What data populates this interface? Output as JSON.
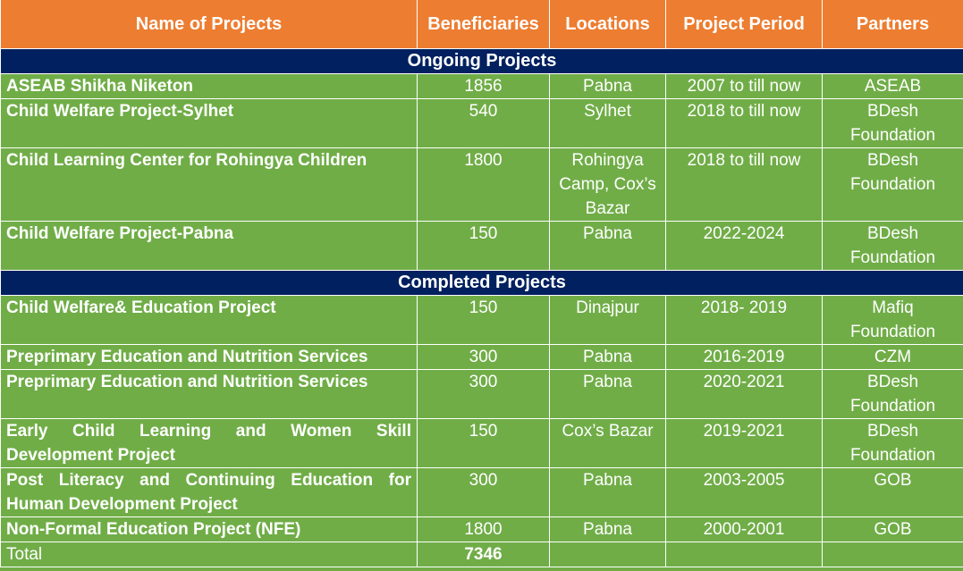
{
  "header": {
    "name": "Name of Projects",
    "beneficiaries": "Beneficiaries",
    "locations": "Locations",
    "period": "Project Period",
    "partners": "Partners"
  },
  "ongoing_title": "Ongoing Projects",
  "ongoing": [
    {
      "name": "ASEAB Shikha Niketon",
      "beneficiaries": "1856",
      "location": "Pabna",
      "period": "2007 to till now",
      "partner": "ASEAB"
    },
    {
      "name": "Child Welfare Project-Sylhet",
      "beneficiaries": "540",
      "location": "Sylhet",
      "period": "2018 to till now",
      "partner": "BDesh Foundation"
    },
    {
      "name": "Child Learning Center for Rohingya Children",
      "beneficiaries": "1800",
      "location": "Rohingya Camp, Cox’s Bazar",
      "period": "2018 to till now",
      "partner": "BDesh Foundation"
    },
    {
      "name": "Child Welfare Project-Pabna",
      "beneficiaries": "150",
      "location": "Pabna",
      "period": "2022-2024",
      "partner": "BDesh Foundation"
    }
  ],
  "completed_title": "Completed Projects",
  "completed": [
    {
      "name": "Child Welfare& Education Project",
      "beneficiaries": "150",
      "location": "Dinajpur",
      "period": "2018- 2019",
      "partner": "Mafiq Foundation"
    },
    {
      "name": "Preprimary Education and Nutrition Services",
      "beneficiaries": "300",
      "location": "Pabna",
      "period": "2016-2019",
      "partner": "CZM"
    },
    {
      "name": "Preprimary Education and Nutrition Services",
      "beneficiaries": "300",
      "location": "Pabna",
      "period": "2020-2021",
      "partner": "BDesh Foundation"
    },
    {
      "name": "Early Child Learning and Women Skill Development Project",
      "beneficiaries": "150",
      "location": "Cox’s Bazar",
      "period": "2019-2021",
      "partner": "BDesh Foundation"
    },
    {
      "name": "Post Literacy and Continuing Education for Human Development Project",
      "beneficiaries": "300",
      "location": "Pabna",
      "period": "2003-2005",
      "partner": "GOB"
    },
    {
      "name": "Non-Formal Education Project (NFE)",
      "beneficiaries": "1800",
      "location": "Pabna",
      "period": "2000-2001",
      "partner": "GOB"
    }
  ],
  "total": {
    "label": "Total",
    "value": "7346"
  },
  "colors": {
    "header": "#ED7D31",
    "section": "#002060",
    "body": "#70AD47"
  }
}
